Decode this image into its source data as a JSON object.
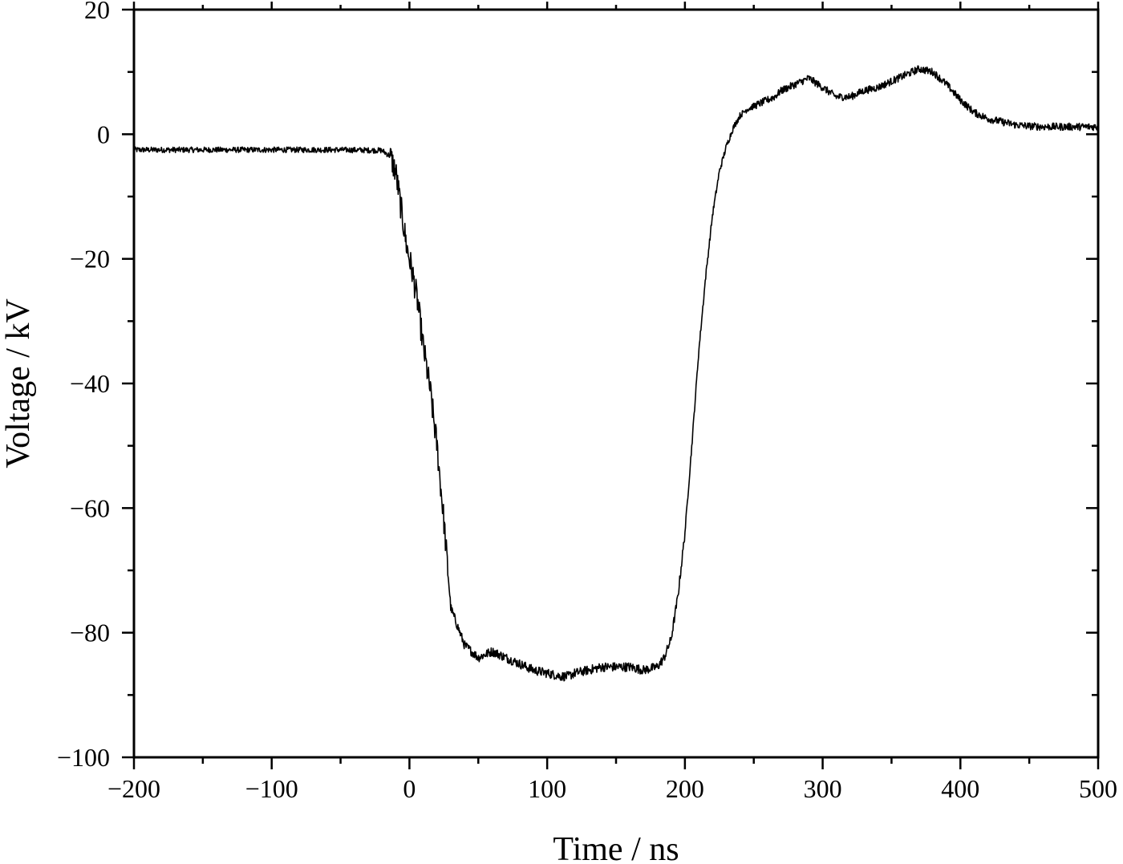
{
  "chart_data": {
    "type": "line",
    "title": "",
    "xlabel": "Time / ns",
    "ylabel": "Voltage / kV",
    "xlim": [
      -200,
      500
    ],
    "ylim": [
      -100,
      20
    ],
    "xticks": [
      -200,
      -100,
      0,
      100,
      200,
      300,
      400,
      500
    ],
    "yticks": [
      -100,
      -80,
      -60,
      -40,
      -20,
      0,
      20
    ],
    "x_minor_step": 50,
    "y_minor_step": 10,
    "grid": false,
    "legend": "none",
    "line_color": "#000000",
    "series": [
      {
        "x": [
          -200,
          -150,
          -100,
          -50,
          -20,
          -14,
          -10,
          -6,
          -2,
          2,
          6,
          10,
          15,
          20,
          25,
          30,
          40,
          50,
          60,
          70,
          80,
          90,
          100,
          110,
          115,
          120,
          130,
          140,
          150,
          160,
          170,
          180,
          185,
          190,
          195,
          200,
          205,
          210,
          215,
          220,
          225,
          230,
          235,
          240,
          245,
          250,
          255,
          260,
          265,
          270,
          280,
          290,
          300,
          310,
          320,
          330,
          340,
          350,
          360,
          370,
          380,
          390,
          400,
          410,
          420,
          430,
          440,
          450,
          460,
          470,
          480,
          490,
          500
        ],
        "y": [
          -2.5,
          -2.5,
          -2.5,
          -2.5,
          -2.6,
          -3.5,
          -6,
          -12,
          -18,
          -22,
          -27,
          -34,
          -41,
          -50,
          -62,
          -76,
          -82,
          -84,
          -83,
          -84,
          -85,
          -86,
          -86.5,
          -87,
          -87,
          -86.5,
          -86,
          -85.5,
          -85.5,
          -85.5,
          -86,
          -85.5,
          -84,
          -81,
          -74,
          -64,
          -50,
          -35,
          -23,
          -13,
          -6,
          -2,
          1,
          3,
          4,
          4.5,
          5,
          5.5,
          6,
          7,
          8,
          9,
          7.5,
          6,
          6,
          7,
          7.5,
          8.5,
          9.5,
          10.5,
          10,
          8,
          5.5,
          3.5,
          2.5,
          2,
          1.5,
          1.3,
          1.2,
          1.2,
          1.2,
          1.2,
          1.2
        ]
      }
    ]
  }
}
